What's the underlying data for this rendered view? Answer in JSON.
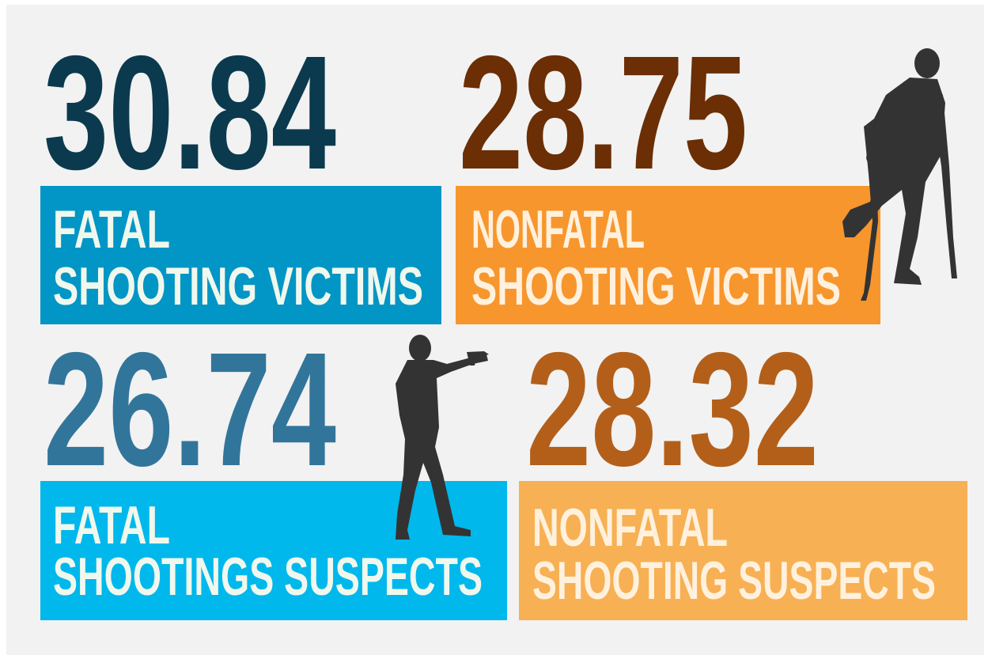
{
  "cards": [
    {
      "number": "30.84",
      "lines": [
        "FATAL",
        "SHOOTING VICTIMS"
      ]
    },
    {
      "number": "28.75",
      "lines": [
        "NONFATAL",
        "SHOOTING VICTIMS"
      ]
    },
    {
      "number": "26.74",
      "lines": [
        "FATAL",
        "SHOOTINGS SUSPECTS"
      ]
    },
    {
      "number": "28.32",
      "lines": [
        "NONFATAL",
        "SHOOTING SUSPECTS"
      ]
    }
  ]
}
